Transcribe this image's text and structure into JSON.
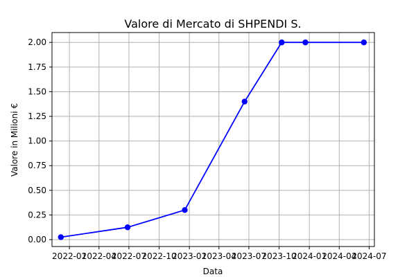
{
  "chart_data": {
    "type": "line",
    "title": "Valore di Mercato di SHPENDI S.",
    "xlabel": "Data",
    "ylabel": "Valore in Milioni €",
    "grid": true,
    "x_ticks": [
      "2022-01",
      "2022-04",
      "2022-07",
      "2022-10",
      "2023-01",
      "2023-04",
      "2023-07",
      "2023-10",
      "2024-01",
      "2024-04",
      "2024-07"
    ],
    "y_ticks": [
      "0.00",
      "0.25",
      "0.50",
      "0.75",
      "1.00",
      "1.25",
      "1.50",
      "1.75",
      "2.00"
    ],
    "ylim": [
      -0.07,
      2.1
    ],
    "xlim": [
      "2021-11-09",
      "2024-07-17"
    ],
    "series": [
      {
        "color": "#0000ff",
        "marker": "circle",
        "x": [
          "2021-12-06",
          "2022-06-27",
          "2022-12-18",
          "2023-06-18",
          "2023-10-09",
          "2023-12-20",
          "2024-06-15"
        ],
        "y": [
          0.025,
          0.125,
          0.3,
          1.4,
          2.0,
          2.0,
          2.0
        ]
      }
    ]
  }
}
